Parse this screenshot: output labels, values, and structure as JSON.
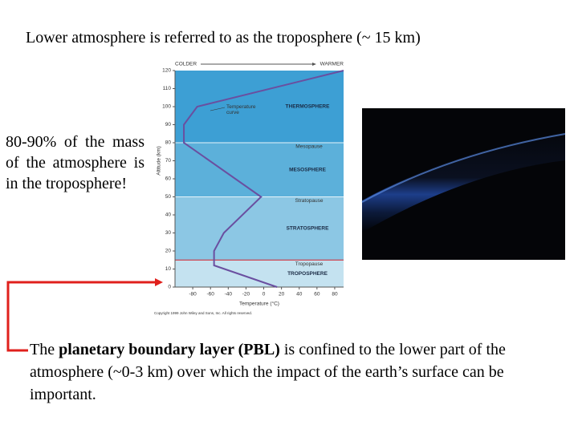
{
  "title": "Lower atmosphere is referred to as the troposphere (~ 15 km)",
  "left_text": "80-90% of the mass of the atmosphere is in the troposphere!",
  "bottom_text": [
    "The ",
    "planetary boundary layer (PBL)",
    " is confined to the lower part of the atmosphere (~0-3 km) over which the impact of the earth’s surface can be important."
  ],
  "chart_data": {
    "type": "line",
    "x_label": "Temperature (°C)",
    "y_label": "Altitude (km)",
    "colder_label": "COLDER",
    "warmer_label": "WARMER",
    "curve_label": "Temperature curve",
    "copyright": "Copyright 1999 John Wiley and Sons, Inc. All rights reserved.",
    "xlim": [
      -100,
      90
    ],
    "ylim": [
      0,
      120
    ],
    "xticks": [
      -80,
      -60,
      -40,
      -20,
      0,
      20,
      40,
      60,
      80
    ],
    "yticks": [
      0,
      10,
      20,
      30,
      40,
      50,
      60,
      70,
      80,
      90,
      100,
      110,
      120
    ],
    "layers": [
      {
        "name": "TROPOSPHERE",
        "bottom": 0,
        "top": 15,
        "color": "#c4e2f0"
      },
      {
        "name": "STRATOSPHERE",
        "bottom": 15,
        "top": 50,
        "color": "#8cc7e4"
      },
      {
        "name": "MESOSPHERE",
        "bottom": 50,
        "top": 80,
        "color": "#5cb0da"
      },
      {
        "name": "THERMOSPHERE",
        "bottom": 80,
        "top": 120,
        "color": "#3d9fd4"
      }
    ],
    "pauses": [
      {
        "label": "Tropopause",
        "altitude": 15,
        "color": "#d0202a"
      },
      {
        "label": "Stratopause",
        "altitude": 50,
        "color": "#e8f4fa"
      },
      {
        "label": "Mesopause",
        "altitude": 80,
        "color": "#e8f4fa"
      }
    ],
    "series": [
      {
        "name": "Temperature",
        "color": "#6a4fa0",
        "x": [
          15,
          -56,
          -56,
          -45,
          -3,
          -90,
          -90,
          -75,
          90
        ],
        "values": [
          0,
          12,
          20,
          30,
          50,
          80,
          90,
          100,
          120
        ]
      }
    ]
  }
}
